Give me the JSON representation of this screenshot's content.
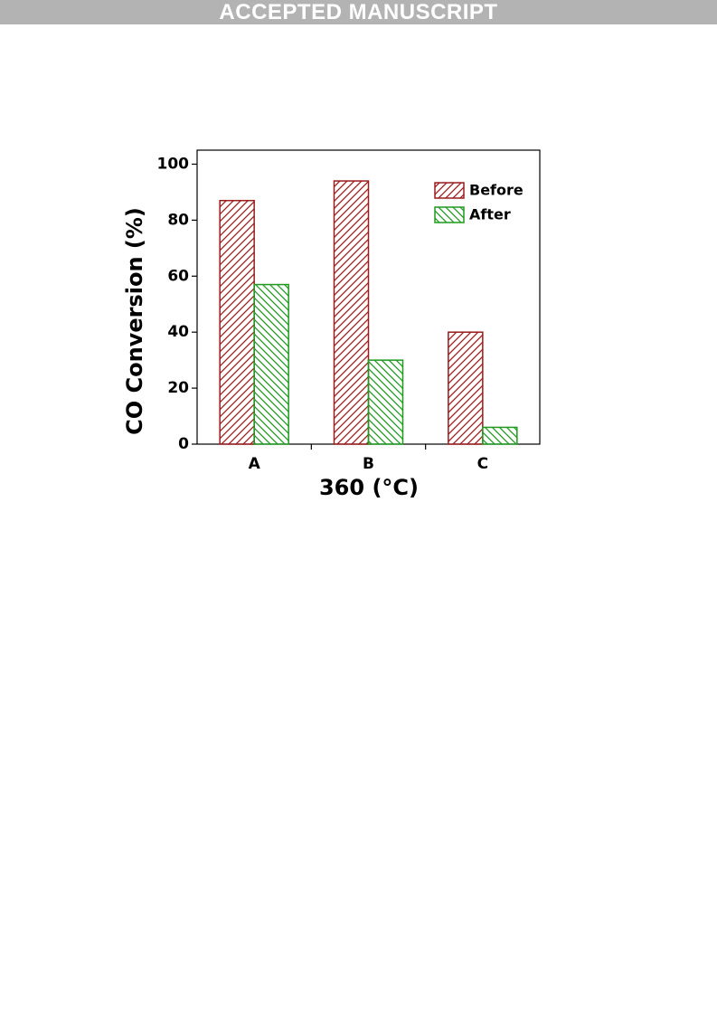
{
  "header": {
    "banner": "ACCEPTED MANUSCRIPT"
  },
  "chart_data": {
    "type": "bar",
    "xlabel": "360 (°C)",
    "ylabel": "CO Conversion (%)",
    "categories": [
      "A",
      "B",
      "C"
    ],
    "series": [
      {
        "name": "Before",
        "color": "#9b1c1c",
        "hatch": "/",
        "values": [
          87,
          94,
          40
        ]
      },
      {
        "name": "After",
        "color": "#1f9a1f",
        "hatch": "\\",
        "values": [
          57,
          30,
          6
        ]
      }
    ],
    "ylim": [
      0,
      105
    ],
    "yticks": [
      0,
      20,
      40,
      60,
      80,
      100
    ],
    "legend": "upper right"
  }
}
